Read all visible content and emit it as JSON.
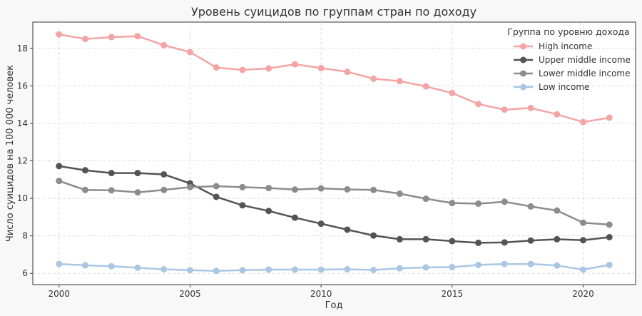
{
  "chart_data": {
    "type": "line",
    "title": "Уровень суицидов по группам стран по доходу",
    "xlabel": "Год",
    "ylabel": "Число суицидов на 100 000 человек",
    "x": [
      2000,
      2001,
      2002,
      2003,
      2004,
      2005,
      2006,
      2007,
      2008,
      2009,
      2010,
      2011,
      2012,
      2013,
      2014,
      2015,
      2016,
      2017,
      2018,
      2019,
      2020,
      2021
    ],
    "xlim": [
      1999.0,
      2022.0
    ],
    "ylim": [
      5.4,
      19.4
    ],
    "xticks": [
      2000,
      2005,
      2010,
      2015,
      2020
    ],
    "yticks": [
      6,
      8,
      10,
      12,
      14,
      16,
      18
    ],
    "grid": true,
    "legend": {
      "title": "Группа по уровню дохода",
      "position": "top-right"
    },
    "series": [
      {
        "name": "High income",
        "color": "#F4A4A4",
        "values": [
          18.75,
          18.5,
          18.6,
          18.65,
          18.17,
          17.8,
          16.98,
          16.85,
          16.93,
          17.15,
          16.95,
          16.75,
          16.38,
          16.25,
          15.97,
          15.62,
          15.03,
          14.73,
          14.82,
          14.48,
          14.07,
          14.3
        ]
      },
      {
        "name": "Upper middle income",
        "color": "#545454",
        "values": [
          11.72,
          11.5,
          11.35,
          11.35,
          11.28,
          10.8,
          10.08,
          9.63,
          9.33,
          8.97,
          8.65,
          8.33,
          8.02,
          7.82,
          7.82,
          7.72,
          7.63,
          7.65,
          7.75,
          7.82,
          7.77,
          7.93
        ]
      },
      {
        "name": "Lower middle income",
        "color": "#8C8C8C",
        "values": [
          10.93,
          10.45,
          10.43,
          10.32,
          10.45,
          10.6,
          10.65,
          10.6,
          10.55,
          10.47,
          10.53,
          10.48,
          10.45,
          10.25,
          9.98,
          9.75,
          9.72,
          9.82,
          9.57,
          9.35,
          8.7,
          8.6
        ]
      },
      {
        "name": "Low income",
        "color": "#A9C6E3",
        "values": [
          6.5,
          6.43,
          6.38,
          6.3,
          6.22,
          6.17,
          6.13,
          6.17,
          6.2,
          6.2,
          6.2,
          6.22,
          6.18,
          6.27,
          6.32,
          6.33,
          6.45,
          6.5,
          6.5,
          6.42,
          6.2,
          6.45
        ]
      }
    ]
  }
}
